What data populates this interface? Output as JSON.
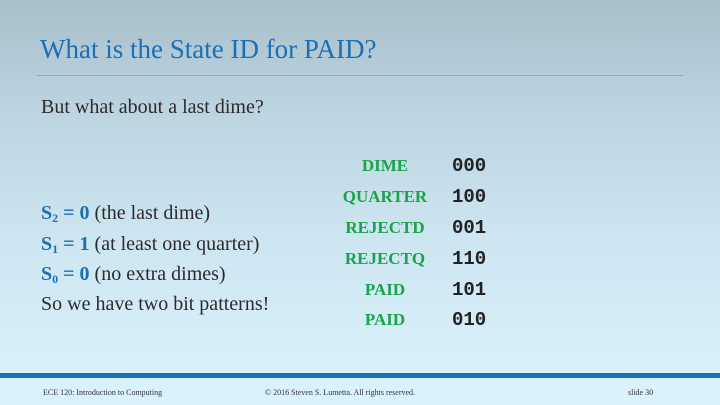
{
  "slide": {
    "title": "What is the State ID for PAID?",
    "intro": "But what about a last dime?",
    "facts": [
      {
        "label": "S",
        "sub": "2",
        "value": " = 0",
        "explain": "(the last dime)"
      },
      {
        "label": "S",
        "sub": "1",
        "value": " = 1",
        "explain": "(at least one quarter)"
      },
      {
        "label": "S",
        "sub": "0",
        "value": " = 0",
        "explain": "(no extra dimes)"
      }
    ],
    "summary": "So we have two bit patterns!",
    "states": [
      {
        "name": "DIME",
        "code": "000"
      },
      {
        "name": "QUARTER",
        "code": "100"
      },
      {
        "name": "REJECTD",
        "code": "001"
      },
      {
        "name": "REJECTQ",
        "code": "110"
      },
      {
        "name": "PAID",
        "code": "101"
      },
      {
        "name": "PAID",
        "code": "010"
      }
    ]
  },
  "footer": {
    "course": "ECE 120: Introduction to Computing",
    "copyright": "© 2016 Steven S. Lumetta.  All rights reserved.",
    "slide_number": "slide 30"
  },
  "colors": {
    "title": "#1a6fb5",
    "state_name": "#1aa34a",
    "rule": "#b9a85a",
    "footer_bar": "#1f6fb3"
  }
}
